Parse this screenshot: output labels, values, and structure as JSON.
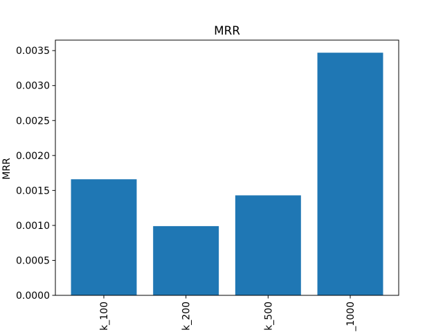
{
  "chart_data": {
    "type": "bar",
    "title": "MRR",
    "xlabel": "",
    "ylabel": "MRR",
    "categories": [
      "k_100",
      "k_200",
      "k_500",
      "_1000"
    ],
    "values": [
      0.00166,
      0.00099,
      0.00143,
      0.00347
    ],
    "ylim": [
      0,
      0.00365
    ],
    "yticks": [
      0,
      0.0005,
      0.001,
      0.0015,
      0.002,
      0.0025,
      0.003,
      0.0035
    ],
    "ytick_labels": [
      "0.0000",
      "0.0005",
      "0.0010",
      "0.0015",
      "0.0020",
      "0.0025",
      "0.0030",
      "0.0035"
    ],
    "grid": false,
    "bar_color": "#1f77b4",
    "xtick_rotation_deg": 90
  }
}
